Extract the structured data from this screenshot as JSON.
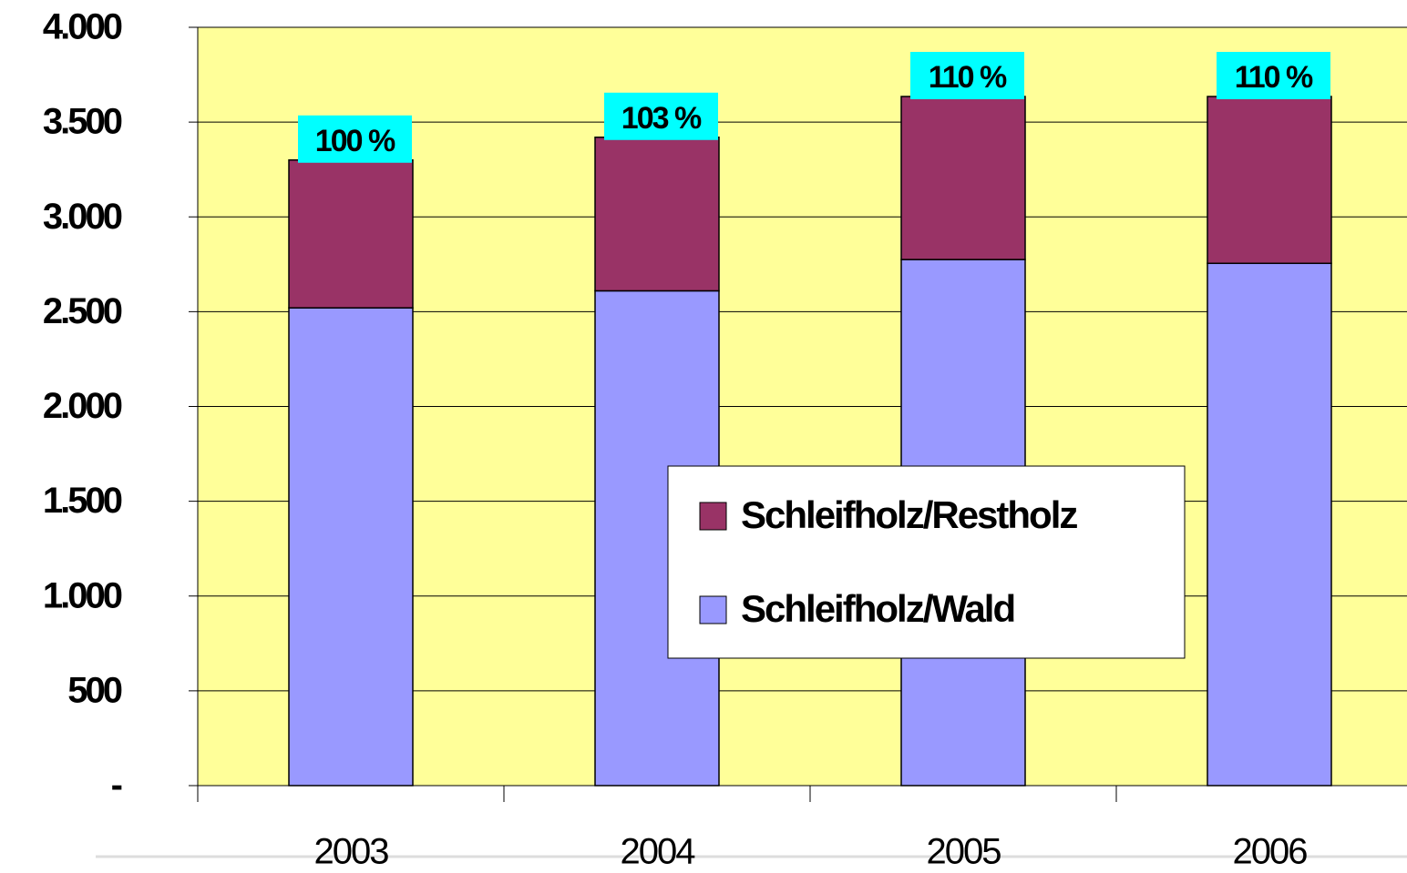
{
  "chart_data": {
    "type": "stacked_bar",
    "categories": [
      "2003",
      "2004",
      "2005",
      "2006"
    ],
    "series": [
      {
        "name": "Schleifholz/Wald",
        "color": "#9999ff",
        "values": [
          2520,
          2610,
          2775,
          2755
        ]
      },
      {
        "name": "Schleifholz/Restholz",
        "color": "#993366",
        "values": [
          780,
          810,
          860,
          880
        ]
      }
    ],
    "annotations": [
      "100 %",
      "103 %",
      "110 %",
      "110 %"
    ],
    "annotation_color": "#00ffff",
    "ylim": [
      0,
      4000
    ],
    "yticks": [
      {
        "value": 0,
        "label": "-"
      },
      500,
      {
        "value": 1000,
        "label": "1.000"
      },
      {
        "value": 1500,
        "label": "1.500"
      },
      {
        "value": 2000,
        "label": "2.000"
      },
      {
        "value": 2500,
        "label": "2.500"
      },
      {
        "value": 3000,
        "label": "3.000"
      },
      {
        "value": 3500,
        "label": "3.500"
      },
      {
        "value": 4000,
        "label": "4.000"
      }
    ],
    "grid": true,
    "plot_background": "#ffff99",
    "legend": "center"
  }
}
